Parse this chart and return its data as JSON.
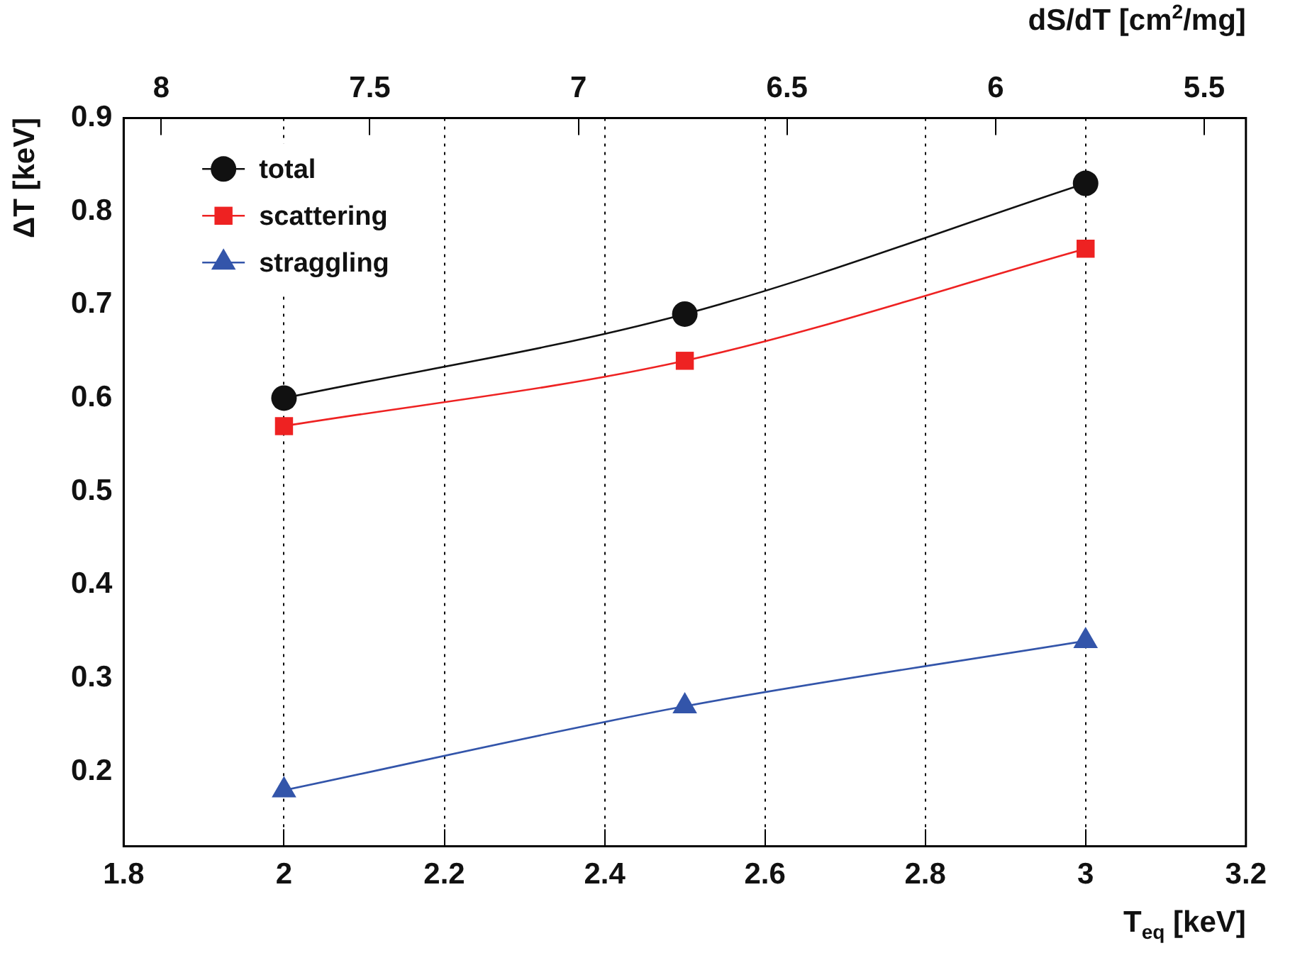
{
  "chart_data": {
    "type": "line",
    "xlabel": "T$_{eq}$ [keV]",
    "ylabel": "ΔT [keV]",
    "x2label": "dS/dT [cm$^{2}$/mg]",
    "x": [
      2,
      2.5,
      3
    ],
    "series": [
      {
        "name": "total",
        "color": "#111111",
        "marker": "circle",
        "values": [
          0.6,
          0.69,
          0.83
        ]
      },
      {
        "name": "scattering",
        "color": "#ee2222",
        "marker": "square",
        "values": [
          0.57,
          0.64,
          0.76
        ]
      },
      {
        "name": "straggling",
        "color": "#3355aa",
        "marker": "triangle",
        "values": [
          0.18,
          0.27,
          0.34
        ]
      }
    ],
    "xlim": [
      1.8,
      3.2
    ],
    "xticks": [
      1.8,
      2,
      2.2,
      2.4,
      2.6,
      2.8,
      3,
      3.2
    ],
    "ylim": [
      0.12,
      0.9
    ],
    "yticks": [
      0.2,
      0.3,
      0.4,
      0.5,
      0.6,
      0.7,
      0.8,
      0.9
    ],
    "x2lim": [
      8.09,
      5.4
    ],
    "x2ticks": [
      8,
      7.5,
      7,
      6.5,
      6,
      5.5
    ],
    "grid": "x",
    "line_style": "solid",
    "legend": "top left"
  }
}
